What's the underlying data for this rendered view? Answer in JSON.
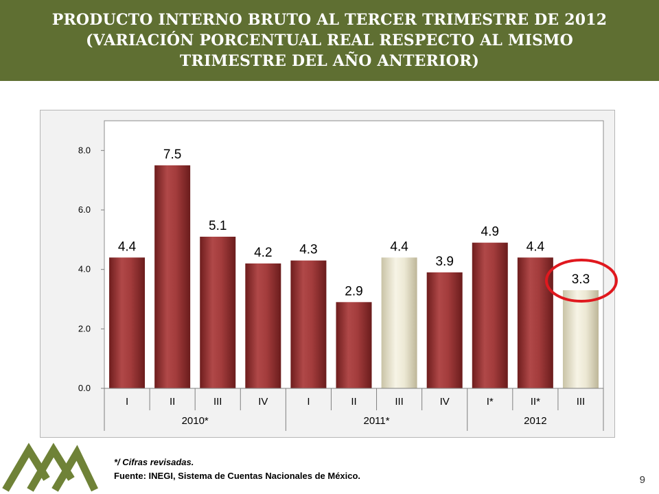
{
  "header": {
    "title": "PRODUCTO INTERNO BRUTO AL TERCER TRIMESTRE DE 2012 (VARIACIÓN PORCENTUAL REAL RESPECTO AL MISMO TRIMESTRE DEL AÑO ANTERIOR)"
  },
  "chart_data": {
    "type": "bar",
    "title": "",
    "xlabel": "",
    "ylabel": "",
    "ylim": [
      0,
      9
    ],
    "yticks": [
      "0.0",
      "2.0",
      "4.0",
      "6.0",
      "8.0"
    ],
    "ytick_values": [
      0,
      2,
      4,
      6,
      8
    ],
    "grid": false,
    "categories": [
      "I",
      "II",
      "III",
      "IV",
      "I",
      "II",
      "III",
      "IV",
      "I*",
      "II*",
      "III"
    ],
    "values": [
      4.4,
      7.5,
      5.1,
      4.2,
      4.3,
      2.9,
      4.4,
      3.9,
      4.9,
      4.4,
      3.3
    ],
    "value_labels": [
      "4.4",
      "7.5",
      "5.1",
      "4.2",
      "4.3",
      "2.9",
      "4.4",
      "3.9",
      "4.9",
      "4.4",
      "3.3"
    ],
    "highlighted": [
      false,
      false,
      false,
      false,
      false,
      false,
      true,
      false,
      false,
      false,
      true
    ],
    "circled_index": 10,
    "groups": [
      {
        "label": "2010*",
        "start": 0,
        "end": 3
      },
      {
        "label": "2011*",
        "start": 4,
        "end": 7
      },
      {
        "label": "2012",
        "start": 8,
        "end": 10
      }
    ],
    "colors": {
      "bar": "#9a3434",
      "bar_highlight": "#eae6d2",
      "circle": "#e0181e",
      "plot_bg": "#ffffff"
    }
  },
  "footnotes": {
    "revised": "*/ Cifras revisadas.",
    "source": "Fuente: INEGI, Sistema de Cuentas Nacionales de México."
  },
  "page_number": "9",
  "logo": {
    "icon": "mountains-logo-icon",
    "color": "#6f8237"
  }
}
